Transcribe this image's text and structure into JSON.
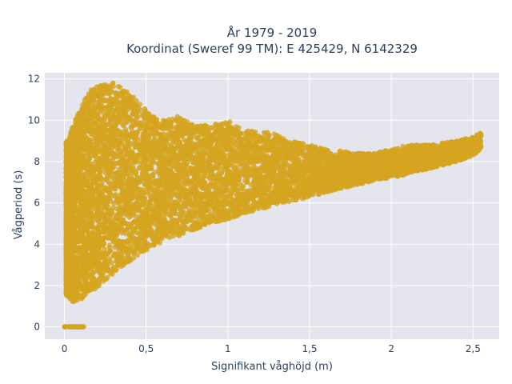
{
  "chart_data": {
    "type": "scatter",
    "title_line1": "År 1979 - 2019",
    "title_line2": "Koordinat (Sweref 99 TM): E 425429, N 6142329",
    "xlabel": "Signifikant våghöjd (m)",
    "ylabel": "Vågperiod (s)",
    "xlim": [
      -0.12,
      2.66
    ],
    "ylim": [
      -0.6,
      12.3
    ],
    "xticks": [
      0,
      0.5,
      1,
      1.5,
      2,
      2.5
    ],
    "xtick_labels": [
      "0",
      "0,5",
      "1",
      "1,5",
      "2",
      "2,5"
    ],
    "yticks": [
      0,
      2,
      4,
      6,
      8,
      10,
      12
    ],
    "ytick_labels": [
      "0",
      "2",
      "4",
      "6",
      "8",
      "10",
      "12"
    ],
    "grid": true,
    "marker_color": "#d4a520",
    "plot_background": "#e5e5ee",
    "point_density_bands": [
      {
        "x": 0.02,
        "y_min": 1.5,
        "y_max": 9.0
      },
      {
        "x": 0.05,
        "y_min": 1.2,
        "y_max": 9.8
      },
      {
        "x": 0.1,
        "y_min": 1.3,
        "y_max": 10.6
      },
      {
        "x": 0.15,
        "y_min": 1.6,
        "y_max": 11.4
      },
      {
        "x": 0.2,
        "y_min": 1.9,
        "y_max": 11.7
      },
      {
        "x": 0.3,
        "y_min": 2.6,
        "y_max": 11.8
      },
      {
        "x": 0.4,
        "y_min": 3.2,
        "y_max": 11.3
      },
      {
        "x": 0.5,
        "y_min": 3.7,
        "y_max": 10.5
      },
      {
        "x": 0.6,
        "y_min": 4.1,
        "y_max": 10.0
      },
      {
        "x": 0.7,
        "y_min": 4.4,
        "y_max": 10.2
      },
      {
        "x": 0.8,
        "y_min": 4.7,
        "y_max": 9.7
      },
      {
        "x": 0.9,
        "y_min": 5.0,
        "y_max": 9.8
      },
      {
        "x": 1.0,
        "y_min": 5.2,
        "y_max": 10.0
      },
      {
        "x": 1.1,
        "y_min": 5.5,
        "y_max": 9.5
      },
      {
        "x": 1.2,
        "y_min": 5.7,
        "y_max": 9.5
      },
      {
        "x": 1.3,
        "y_min": 5.9,
        "y_max": 9.3
      },
      {
        "x": 1.4,
        "y_min": 6.1,
        "y_max": 9.0
      },
      {
        "x": 1.5,
        "y_min": 6.3,
        "y_max": 8.8
      },
      {
        "x": 1.6,
        "y_min": 6.5,
        "y_max": 8.6
      },
      {
        "x": 1.7,
        "y_min": 6.7,
        "y_max": 8.5
      },
      {
        "x": 1.8,
        "y_min": 6.9,
        "y_max": 8.4
      },
      {
        "x": 1.9,
        "y_min": 7.1,
        "y_max": 8.4
      },
      {
        "x": 2.0,
        "y_min": 7.2,
        "y_max": 8.6
      },
      {
        "x": 2.1,
        "y_min": 7.4,
        "y_max": 8.8
      },
      {
        "x": 2.2,
        "y_min": 7.6,
        "y_max": 8.8
      },
      {
        "x": 2.3,
        "y_min": 7.8,
        "y_max": 8.9
      },
      {
        "x": 2.4,
        "y_min": 8.0,
        "y_max": 9.0
      },
      {
        "x": 2.5,
        "y_min": 8.3,
        "y_max": 9.2
      },
      {
        "x": 2.55,
        "y_min": 8.6,
        "y_max": 9.4
      }
    ],
    "zero_period_points": {
      "x_min": 0.0,
      "x_max": 0.12,
      "y": 0
    }
  }
}
